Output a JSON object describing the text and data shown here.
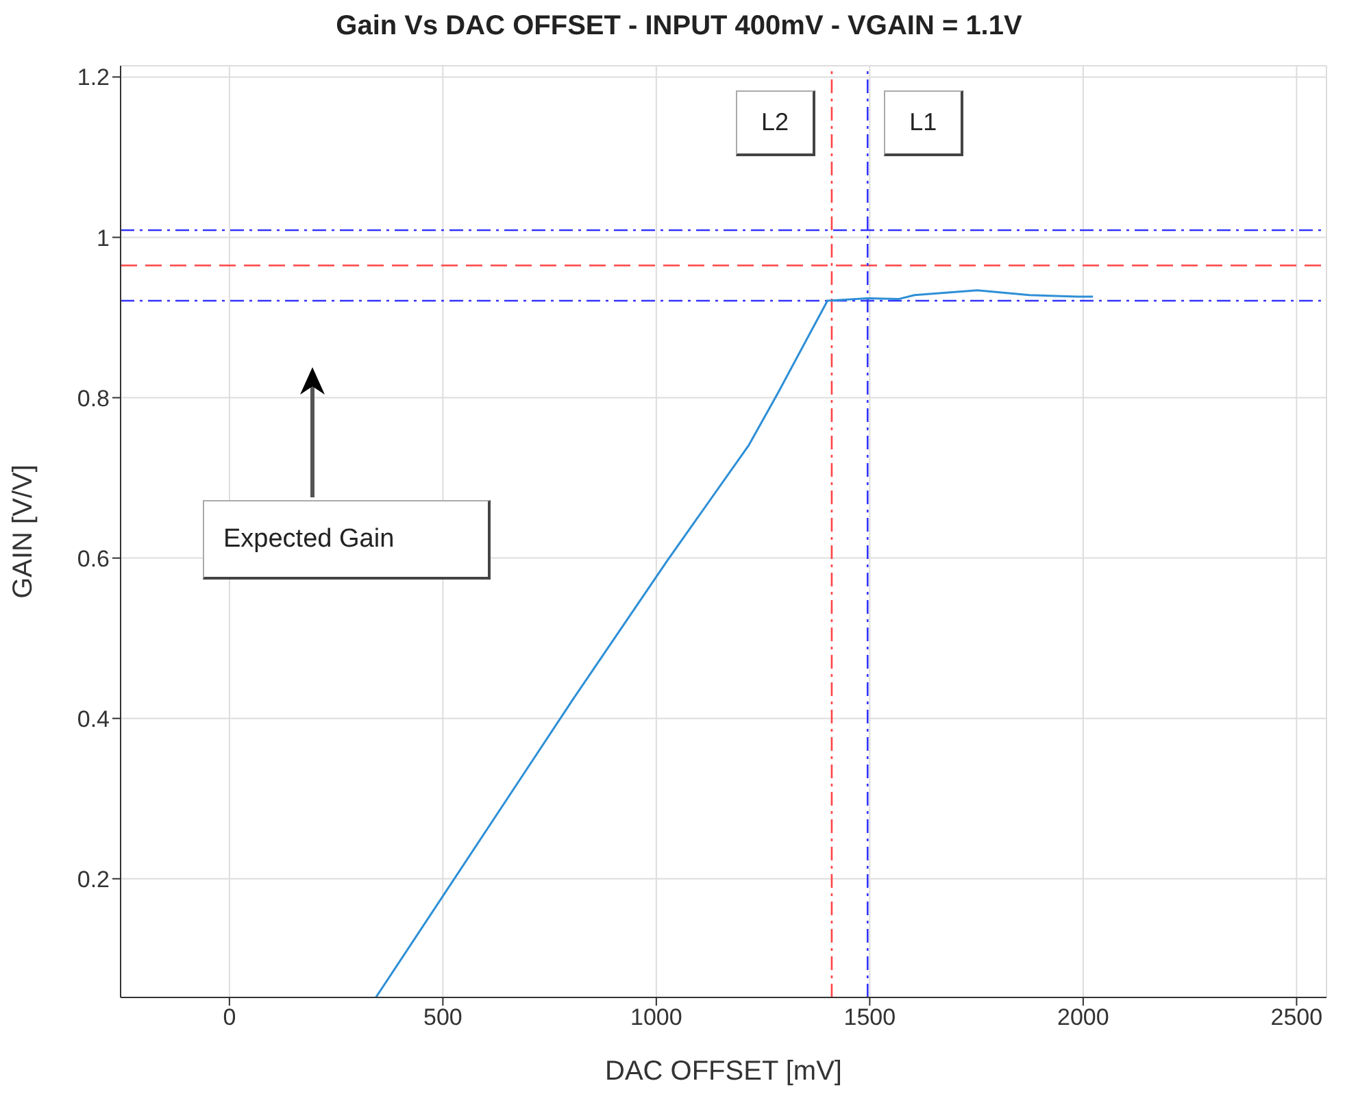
{
  "chart_data": {
    "type": "line",
    "title": "Gain Vs DAC OFFSET - INPUT 400mV - VGAIN = 1.1V",
    "xlabel": "DAC OFFSET [mV]",
    "ylabel": "GAIN [V/V]",
    "x": [
      343,
      805,
      1026,
      1217,
      1284,
      1401,
      1494,
      1567,
      1605,
      1752,
      1874,
      1985,
      2023
    ],
    "series": [
      {
        "color": "#2e8fd6",
        "values": [
          0.052,
          0.424,
          0.597,
          0.741,
          0.805,
          0.921,
          0.924,
          0.923,
          0.928,
          0.934,
          0.928,
          0.926,
          0.926
        ]
      }
    ],
    "xlim": [
      -255,
      2570
    ],
    "ylim": [
      0.052,
      1.214
    ],
    "xticks": [
      0,
      500,
      1000,
      1500,
      2000,
      2500
    ],
    "yticks": [
      0.2,
      0.4,
      0.6,
      0.8,
      1,
      1.2
    ],
    "grid": true,
    "marker": "none",
    "line_style": "solid",
    "ref_lines": [
      {
        "axis": "y",
        "value": 1.009,
        "color": "#3333ff",
        "line_style": "dashdot"
      },
      {
        "axis": "y",
        "value": 0.965,
        "color": "#ff4444",
        "line_style": "dashed"
      },
      {
        "axis": "y",
        "value": 0.921,
        "color": "#3333ff",
        "line_style": "dashdot"
      },
      {
        "axis": "x",
        "value": 1411,
        "label": "L2",
        "color": "#ff4444",
        "line_style": "dashdot"
      },
      {
        "axis": "x",
        "value": 1495,
        "label": "L1",
        "color": "#3333ff",
        "line_style": "dashdot"
      }
    ],
    "annotations": [
      "Expected Gain"
    ]
  }
}
